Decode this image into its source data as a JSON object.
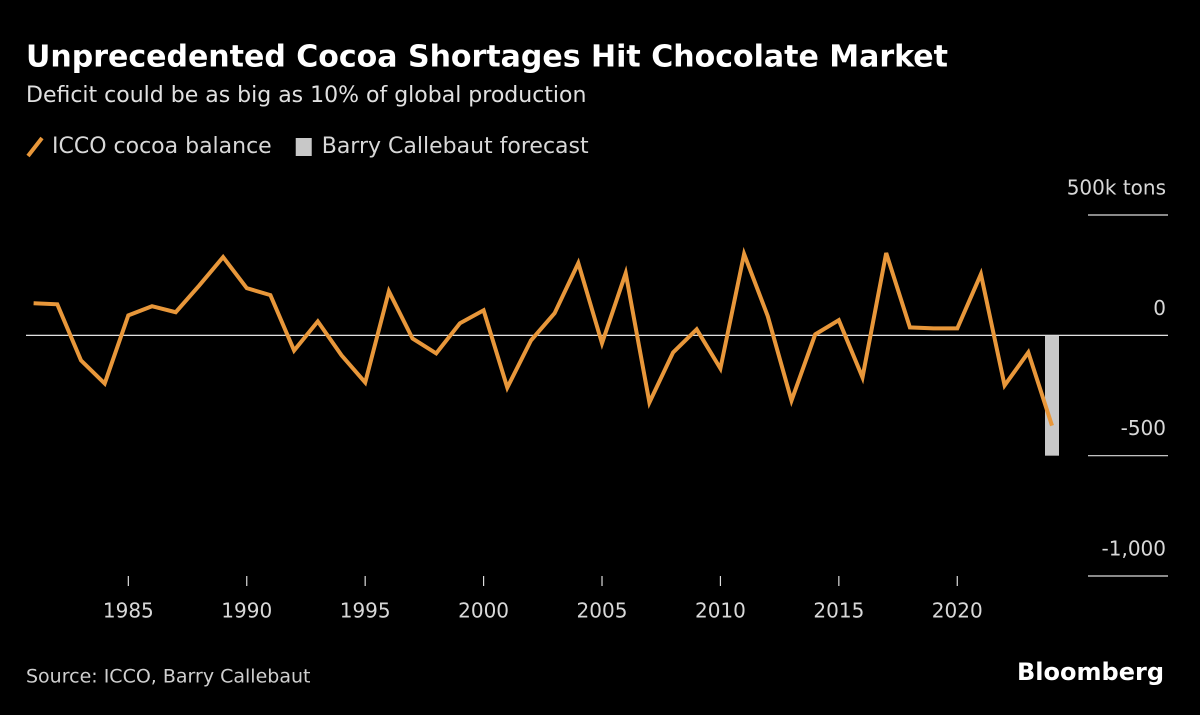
{
  "chart_data": {
    "type": "line",
    "title": "Unprecedented Cocoa Shortages Hit Chocolate Market",
    "subtitle": "Deficit could be as big as 10% of global production",
    "source": "Source: ICCO, Barry Callebaut",
    "brand": "Bloomberg",
    "x": [
      1981,
      1982,
      1983,
      1984,
      1985,
      1986,
      1987,
      1988,
      1989,
      1990,
      1991,
      1992,
      1993,
      1994,
      1995,
      1996,
      1997,
      1998,
      1999,
      2000,
      2001,
      2002,
      2003,
      2004,
      2005,
      2006,
      2007,
      2008,
      2009,
      2010,
      2011,
      2012,
      2013,
      2014,
      2015,
      2016,
      2017,
      2018,
      2019,
      2020,
      2021,
      2022,
      2023,
      2024
    ],
    "series": [
      {
        "name": "ICCO cocoa balance",
        "color": "#e8973a",
        "type": "line",
        "values": [
          133,
          129,
          -104,
          -200,
          83,
          121,
          96,
          208,
          325,
          196,
          167,
          -63,
          58,
          -83,
          -196,
          183,
          -13,
          -75,
          50,
          104,
          -217,
          -21,
          92,
          300,
          -33,
          258,
          -279,
          -71,
          25,
          -138,
          338,
          79,
          -271,
          4,
          63,
          -175,
          342,
          33,
          29,
          29,
          254,
          -208,
          -71,
          -375
        ]
      },
      {
        "name": "Barry Callebaut forecast",
        "color": "#c8c8c8",
        "type": "bar",
        "values": [
          null,
          null,
          null,
          null,
          null,
          null,
          null,
          null,
          null,
          null,
          null,
          null,
          null,
          null,
          null,
          null,
          null,
          null,
          null,
          null,
          null,
          null,
          null,
          null,
          null,
          null,
          null,
          null,
          null,
          null,
          null,
          null,
          null,
          null,
          null,
          null,
          null,
          null,
          null,
          null,
          null,
          null,
          null,
          -500
        ]
      }
    ],
    "xlim": [
      1981,
      2024
    ],
    "xticks": [
      1985,
      1990,
      1995,
      2000,
      2005,
      2010,
      2015,
      2020
    ],
    "ylim": [
      -1000,
      500
    ],
    "yticks": [
      {
        "value": 500,
        "label": "500k tons"
      },
      0,
      -500,
      {
        "value": -1000,
        "label": "-1,000"
      }
    ]
  }
}
